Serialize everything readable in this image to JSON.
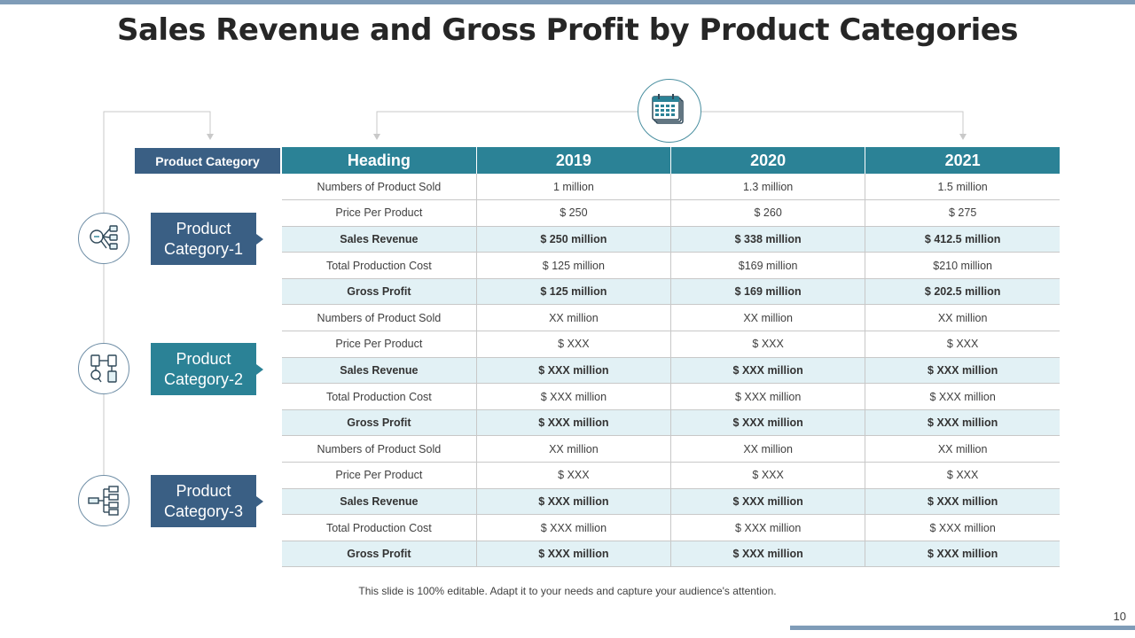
{
  "title": "Sales Revenue and Gross Profit by Product Categories",
  "category_header": "Product Category",
  "table": {
    "headers": [
      "Heading",
      "2019",
      "2020",
      "2021"
    ],
    "rows": [
      {
        "highlight": false,
        "cells": [
          "Numbers  of Product Sold",
          "1 million",
          "1.3 million",
          "1.5 million"
        ]
      },
      {
        "highlight": false,
        "cells": [
          "Price Per Product",
          "$ 250",
          "$ 260",
          "$ 275"
        ]
      },
      {
        "highlight": true,
        "cells": [
          "Sales Revenue",
          "$ 250 million",
          "$ 338 million",
          "$ 412.5 million"
        ]
      },
      {
        "highlight": false,
        "cells": [
          "Total Production Cost",
          "$ 125  million",
          "$169  million",
          "$210  million"
        ]
      },
      {
        "highlight": true,
        "cells": [
          "Gross  Profit",
          "$ 125 million",
          "$ 169 million",
          "$ 202.5 million"
        ]
      },
      {
        "highlight": false,
        "cells": [
          "Numbers  of Product Sold",
          "XX  million",
          "XX  million",
          "XX  million"
        ]
      },
      {
        "highlight": false,
        "cells": [
          "Price Per Product",
          "$ XXX",
          "$ XXX",
          "$ XXX"
        ]
      },
      {
        "highlight": true,
        "cells": [
          "Sales Revenue",
          "$ XXX million",
          "$ XXX million",
          "$ XXX million"
        ]
      },
      {
        "highlight": false,
        "cells": [
          "Total Production Cost",
          "$ XXX   million",
          "$ XXX   million",
          "$ XXX   million"
        ]
      },
      {
        "highlight": true,
        "cells": [
          "Gross  Profit",
          "$ XXX million",
          "$ XXX million",
          "$ XXX million"
        ]
      },
      {
        "highlight": false,
        "cells": [
          "Numbers  of Product Sold",
          "XX  million",
          "XX  million",
          "XX  million"
        ]
      },
      {
        "highlight": false,
        "cells": [
          "Price Per Product",
          "$ XXX",
          "$ XXX",
          "$ XXX"
        ]
      },
      {
        "highlight": true,
        "cells": [
          "Sales Revenue",
          "$ XXX million",
          "$ XXX million",
          "$ XXX million"
        ]
      },
      {
        "highlight": false,
        "cells": [
          "Total Production Cost",
          "$ XXX   million",
          "$ XXX   million",
          "$ XXX   million"
        ]
      },
      {
        "highlight": true,
        "cells": [
          "Gross  Profit",
          "$ XXX million",
          "$ XXX million",
          "$ XXX million"
        ]
      }
    ]
  },
  "categories": [
    {
      "label": "Product Category-1",
      "icon": "search-flowchart-icon"
    },
    {
      "label": "Product Category-2",
      "icon": "document-process-icon"
    },
    {
      "label": "Product Category-3",
      "icon": "hierarchy-icon"
    }
  ],
  "calendar_icon": "calendar-icon",
  "footer_note": "This slide is 100% editable. Adapt it to your needs and capture your audience's attention.",
  "page_number": "10",
  "colors": {
    "navy": "#3a5f84",
    "teal": "#2b8296",
    "highlight_row": "#e2f1f5",
    "accent_bar": "#7f9cb8"
  }
}
